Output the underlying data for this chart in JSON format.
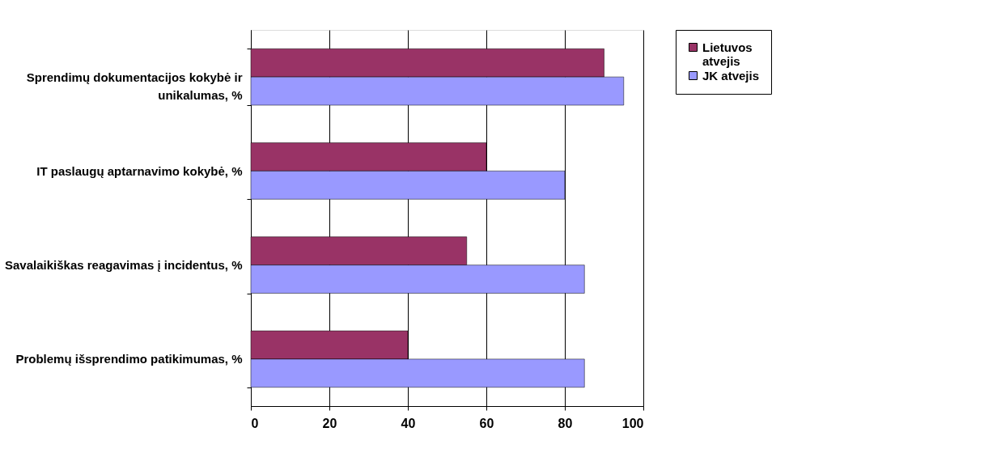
{
  "chart_data": {
    "type": "bar",
    "orientation": "horizontal",
    "categories": [
      "Sprendimų dokumentacijos kokybė ir unikalumas, %",
      "IT paslaugų aptarnavimo kokybė, %",
      "Savalaikiškas reagavimas į incidentus, %",
      "Problemų išsprendimo  patikimumas, %"
    ],
    "series": [
      {
        "name": "Lietuvos atvejis",
        "color": "#993366",
        "values": [
          90,
          60,
          55,
          40
        ]
      },
      {
        "name": "JK atvejis",
        "color": "#9999ff",
        "values": [
          95,
          80,
          85,
          85
        ]
      }
    ],
    "xlim": [
      0,
      100
    ],
    "xticks": [
      0,
      20,
      40,
      60,
      80,
      100
    ],
    "grid": "x",
    "legend": "right"
  }
}
